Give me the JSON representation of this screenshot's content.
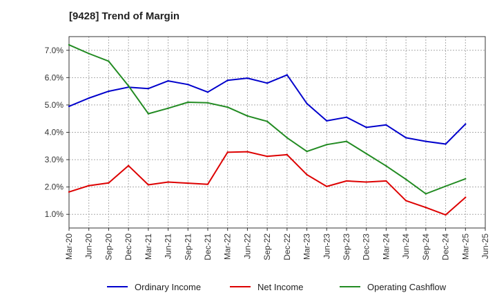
{
  "chart_data": {
    "type": "line",
    "title": "[9428]  Trend of Margin",
    "xlabel": "",
    "ylabel": "",
    "ylim": [
      0.5,
      7.5
    ],
    "yticks": [
      1.0,
      2.0,
      3.0,
      4.0,
      5.0,
      6.0,
      7.0
    ],
    "ytick_labels": [
      "1.0%",
      "2.0%",
      "3.0%",
      "4.0%",
      "5.0%",
      "6.0%",
      "7.0%"
    ],
    "categories": [
      "Mar-20",
      "Jun-20",
      "Sep-20",
      "Dec-20",
      "Mar-21",
      "Jun-21",
      "Sep-21",
      "Dec-21",
      "Mar-22",
      "Jun-22",
      "Sep-22",
      "Dec-22",
      "Mar-23",
      "Jun-23",
      "Sep-23",
      "Dec-23",
      "Mar-24",
      "Jun-24",
      "Sep-24",
      "Dec-24",
      "Mar-25",
      "Jun-25"
    ],
    "grid": true,
    "legend_position": "bottom",
    "series": [
      {
        "name": "Ordinary Income",
        "color": "#0000cc",
        "values": [
          4.95,
          5.25,
          5.5,
          5.65,
          5.6,
          5.88,
          5.75,
          5.47,
          5.9,
          5.98,
          5.8,
          6.1,
          5.05,
          4.42,
          4.55,
          4.18,
          4.27,
          3.8,
          3.67,
          3.57,
          4.3,
          null
        ]
      },
      {
        "name": "Net Income",
        "color": "#dd0000",
        "values": [
          1.82,
          2.05,
          2.15,
          2.78,
          2.08,
          2.18,
          2.14,
          2.1,
          3.27,
          3.29,
          3.12,
          3.18,
          2.45,
          2.02,
          2.22,
          2.18,
          2.22,
          1.5,
          1.25,
          0.98,
          1.62,
          null
        ]
      },
      {
        "name": "Operating Cashflow",
        "color": "#228b22",
        "values": [
          7.2,
          6.88,
          6.6,
          5.7,
          4.68,
          4.88,
          5.1,
          5.08,
          4.92,
          4.6,
          4.4,
          3.8,
          3.3,
          3.55,
          3.67,
          3.22,
          2.77,
          2.28,
          1.75,
          2.03,
          2.3,
          null
        ]
      }
    ]
  }
}
